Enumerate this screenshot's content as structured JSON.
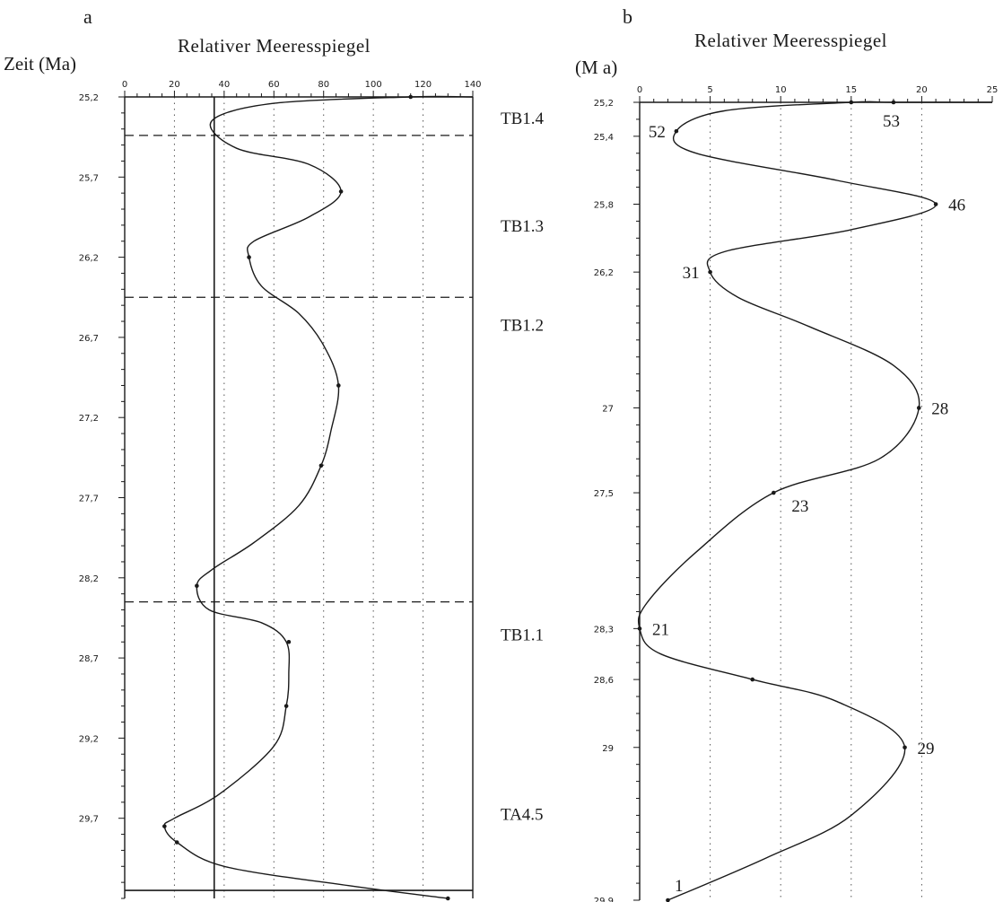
{
  "chart_data": [
    {
      "panel_label": "a",
      "type": "line",
      "title": "Relativer Meeresspiegel",
      "ylabel": "Zeit (Ma)",
      "xlabel": "",
      "xlim": [
        0,
        140
      ],
      "ylim": [
        25.2,
        30.2
      ],
      "x_ticks": [
        0,
        20,
        40,
        60,
        80,
        100,
        120,
        140
      ],
      "x_tick_labels": [
        "0",
        "20",
        "40",
        "60",
        "80",
        "100",
        "120",
        "140"
      ],
      "y_ticks": [
        25.2,
        25.7,
        26.2,
        26.7,
        27.2,
        27.7,
        28.2,
        28.7,
        29.2,
        29.7
      ],
      "y_tick_labels": [
        "25,2",
        "25,7",
        "26,2",
        "26,7",
        "27,2",
        "27,7",
        "28,2",
        "28,7",
        "29,2",
        "29,7"
      ],
      "grid": "vertical dotted",
      "reference_line_x": 36,
      "boundaries": [
        {
          "y": 25.44,
          "style": "dashed"
        },
        {
          "y": 26.45,
          "style": "dashed"
        },
        {
          "y": 28.35,
          "style": "dashed"
        },
        {
          "y": 30.15,
          "style": "solid"
        }
      ],
      "sequences": [
        {
          "label": "TB1.4",
          "y": 25.33
        },
        {
          "label": "TB1.3",
          "y": 26.0
        },
        {
          "label": "TB1.2",
          "y": 26.62
        },
        {
          "label": "TB1.1",
          "y": 28.55
        },
        {
          "label": "TA4.5",
          "y": 29.67
        }
      ],
      "curve": [
        {
          "x": 140,
          "y": 25.2
        },
        {
          "x": 115,
          "y": 25.2
        },
        {
          "x": 60,
          "y": 25.24
        },
        {
          "x": 35,
          "y": 25.35
        },
        {
          "x": 45,
          "y": 25.52
        },
        {
          "x": 74,
          "y": 25.62
        },
        {
          "x": 87,
          "y": 25.79
        },
        {
          "x": 74,
          "y": 25.95
        },
        {
          "x": 52,
          "y": 26.1
        },
        {
          "x": 50,
          "y": 26.2
        },
        {
          "x": 55,
          "y": 26.38
        },
        {
          "x": 70,
          "y": 26.55
        },
        {
          "x": 80,
          "y": 26.75
        },
        {
          "x": 86,
          "y": 27.0
        },
        {
          "x": 83,
          "y": 27.28
        },
        {
          "x": 79,
          "y": 27.5
        },
        {
          "x": 70,
          "y": 27.75
        },
        {
          "x": 52,
          "y": 27.98
        },
        {
          "x": 35,
          "y": 28.15
        },
        {
          "x": 29,
          "y": 28.25
        },
        {
          "x": 34,
          "y": 28.4
        },
        {
          "x": 55,
          "y": 28.48
        },
        {
          "x": 65,
          "y": 28.6
        },
        {
          "x": 66,
          "y": 28.8
        },
        {
          "x": 65,
          "y": 29.0
        },
        {
          "x": 60,
          "y": 29.25
        },
        {
          "x": 38,
          "y": 29.55
        },
        {
          "x": 20,
          "y": 29.7
        },
        {
          "x": 16,
          "y": 29.75
        },
        {
          "x": 21,
          "y": 29.85
        },
        {
          "x": 40,
          "y": 30.0
        },
        {
          "x": 90,
          "y": 30.12
        },
        {
          "x": 130,
          "y": 30.2
        }
      ],
      "markers": [
        {
          "x": 115,
          "y": 25.2
        },
        {
          "x": 87,
          "y": 25.79
        },
        {
          "x": 50,
          "y": 26.2
        },
        {
          "x": 86,
          "y": 27.0
        },
        {
          "x": 79,
          "y": 27.5
        },
        {
          "x": 29,
          "y": 28.25
        },
        {
          "x": 66,
          "y": 28.6
        },
        {
          "x": 65,
          "y": 29.0
        },
        {
          "x": 16,
          "y": 29.75
        },
        {
          "x": 21,
          "y": 29.85
        },
        {
          "x": 130,
          "y": 30.2
        }
      ]
    },
    {
      "panel_label": "b",
      "type": "line",
      "title": "Relativer Meeresspiegel",
      "ylabel": "(M a)",
      "xlabel": "",
      "xlim": [
        0,
        25
      ],
      "ylim": [
        25.2,
        29.9
      ],
      "x_ticks": [
        0,
        5,
        10,
        15,
        20,
        25
      ],
      "x_tick_labels": [
        "0",
        "5",
        "10",
        "15",
        "20",
        "25"
      ],
      "y_ticks": [
        25.2,
        25.4,
        25.8,
        26.2,
        27.0,
        27.5,
        28.3,
        28.6,
        29.0,
        29.9
      ],
      "y_tick_labels": [
        "25,2",
        "25,4",
        "25,8",
        "26,2",
        "27",
        "27,5",
        "28,3",
        "28,6",
        "29",
        "29,9"
      ],
      "grid": "vertical dotted",
      "curve": [
        {
          "x": 25,
          "y": 25.2
        },
        {
          "x": 18,
          "y": 25.2
        },
        {
          "x": 15,
          "y": 25.2
        },
        {
          "x": 6,
          "y": 25.25
        },
        {
          "x": 2.6,
          "y": 25.37
        },
        {
          "x": 4,
          "y": 25.5
        },
        {
          "x": 14,
          "y": 25.66
        },
        {
          "x": 21,
          "y": 25.8
        },
        {
          "x": 15,
          "y": 25.95
        },
        {
          "x": 6,
          "y": 26.08
        },
        {
          "x": 5,
          "y": 26.2
        },
        {
          "x": 7,
          "y": 26.35
        },
        {
          "x": 12,
          "y": 26.52
        },
        {
          "x": 18,
          "y": 26.75
        },
        {
          "x": 19.8,
          "y": 27.0
        },
        {
          "x": 17,
          "y": 27.3
        },
        {
          "x": 9.5,
          "y": 27.5
        },
        {
          "x": 4,
          "y": 27.85
        },
        {
          "x": 0.5,
          "y": 28.15
        },
        {
          "x": 0,
          "y": 28.3
        },
        {
          "x": 1.5,
          "y": 28.45
        },
        {
          "x": 8,
          "y": 28.6
        },
        {
          "x": 14,
          "y": 28.73
        },
        {
          "x": 18.8,
          "y": 29.0
        },
        {
          "x": 15,
          "y": 29.4
        },
        {
          "x": 9,
          "y": 29.65
        },
        {
          "x": 2,
          "y": 29.9
        }
      ],
      "markers": [
        {
          "x": 18,
          "y": 25.2
        },
        {
          "x": 15,
          "y": 25.2
        },
        {
          "x": 2.6,
          "y": 25.37
        },
        {
          "x": 21,
          "y": 25.8
        },
        {
          "x": 5,
          "y": 26.2
        },
        {
          "x": 19.8,
          "y": 27.0
        },
        {
          "x": 9.5,
          "y": 27.5
        },
        {
          "x": 0,
          "y": 28.3
        },
        {
          "x": 8,
          "y": 28.6
        },
        {
          "x": 18.8,
          "y": 29.0
        },
        {
          "x": 2,
          "y": 29.9
        }
      ],
      "annotations": [
        {
          "text": "53",
          "x": 18,
          "y": 25.2,
          "pos": "below"
        },
        {
          "text": "52",
          "x": 2.6,
          "y": 25.37,
          "pos": "left"
        },
        {
          "text": "46",
          "x": 21,
          "y": 25.8,
          "pos": "right"
        },
        {
          "text": "31",
          "x": 5,
          "y": 26.2,
          "pos": "left"
        },
        {
          "text": "28",
          "x": 19.8,
          "y": 27.0,
          "pos": "right"
        },
        {
          "text": "23",
          "x": 9.5,
          "y": 27.5,
          "pos": "below-right"
        },
        {
          "text": "21",
          "x": 0,
          "y": 28.3,
          "pos": "right"
        },
        {
          "text": "29",
          "x": 18.8,
          "y": 29.0,
          "pos": "right"
        },
        {
          "text": "1",
          "x": 2,
          "y": 29.9,
          "pos": "above-left"
        }
      ]
    }
  ]
}
